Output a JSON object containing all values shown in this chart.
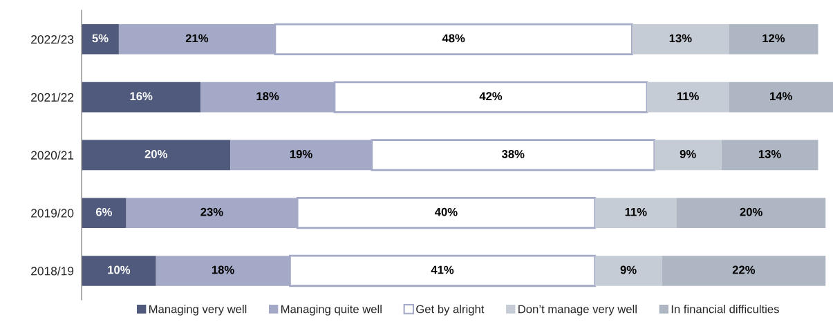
{
  "chart_data": {
    "type": "bar",
    "orientation": "horizontal",
    "stacked": true,
    "legend": "bottom",
    "tick_labels": "y",
    "categories": [
      "2022/23",
      "2021/22",
      "2020/21",
      "2019/20",
      "2018/19"
    ],
    "series": [
      {
        "name": "Managing very well",
        "color": "#4f5a7c",
        "values": [
          5,
          16,
          20,
          6,
          10
        ],
        "value_labels": [
          "5%",
          "16%",
          "20%",
          "6%",
          "10%"
        ]
      },
      {
        "name": "Managing quite well",
        "color": "#a3a9c6",
        "values": [
          21,
          18,
          19,
          23,
          18
        ],
        "value_labels": [
          "21%",
          "18%",
          "19%",
          "23%",
          "18%"
        ]
      },
      {
        "name": "Get by alright",
        "color": "#ffffff",
        "values": [
          48,
          42,
          38,
          40,
          41
        ],
        "value_labels": [
          "48%",
          "42%",
          "38%",
          "40%",
          "41%"
        ]
      },
      {
        "name": "Don’t manage very well",
        "color": "#c6ccd6",
        "values": [
          13,
          11,
          9,
          11,
          9
        ],
        "value_labels": [
          "13%",
          "11%",
          "9%",
          "11%",
          "9%"
        ]
      },
      {
        "name": "In financial difficulties",
        "color": "#adb6c2",
        "values": [
          12,
          14,
          13,
          20,
          22
        ],
        "value_labels": [
          "12%",
          "14%",
          "13%",
          "20%",
          "22%"
        ]
      }
    ]
  }
}
